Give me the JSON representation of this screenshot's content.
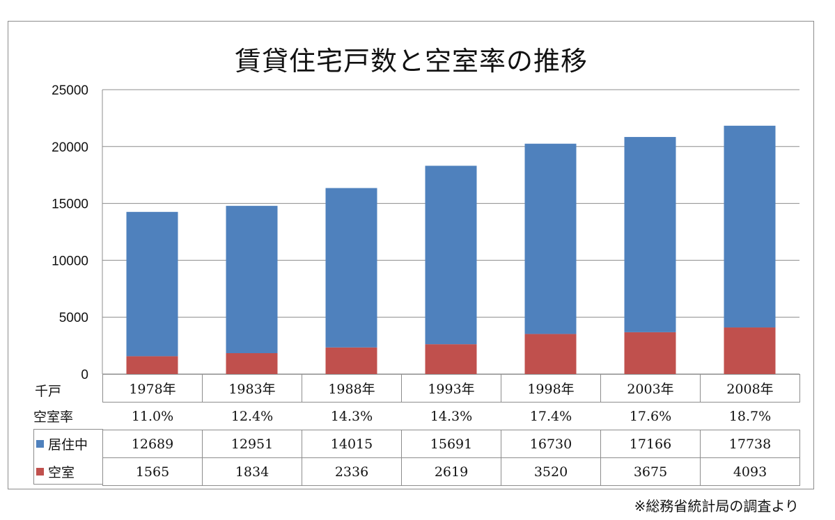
{
  "chart_data": {
    "type": "bar",
    "stacked": true,
    "title": "賃貸住宅戸数と空室率の推移",
    "unit_label": "千戸",
    "categories": [
      "1978年",
      "1983年",
      "1988年",
      "1993年",
      "1998年",
      "2003年",
      "2008年"
    ],
    "series": [
      {
        "name": "空室",
        "color": "#c0504d",
        "values": [
          1565,
          1834,
          2336,
          2619,
          3520,
          3675,
          4093
        ]
      },
      {
        "name": "居住中",
        "color": "#4f81bd",
        "values": [
          12689,
          12951,
          14015,
          15691,
          16730,
          17166,
          17738
        ]
      }
    ],
    "vacancy_rate_label": "空室率",
    "vacancy_rate": [
      "11.0%",
      "12.4%",
      "14.3%",
      "14.3%",
      "17.4%",
      "17.6%",
      "18.7%"
    ],
    "ylim": [
      0,
      25000
    ],
    "yticks": [
      0,
      5000,
      10000,
      15000,
      20000,
      25000
    ],
    "grid": true,
    "source_note": "※総務省統計局の調査より"
  }
}
